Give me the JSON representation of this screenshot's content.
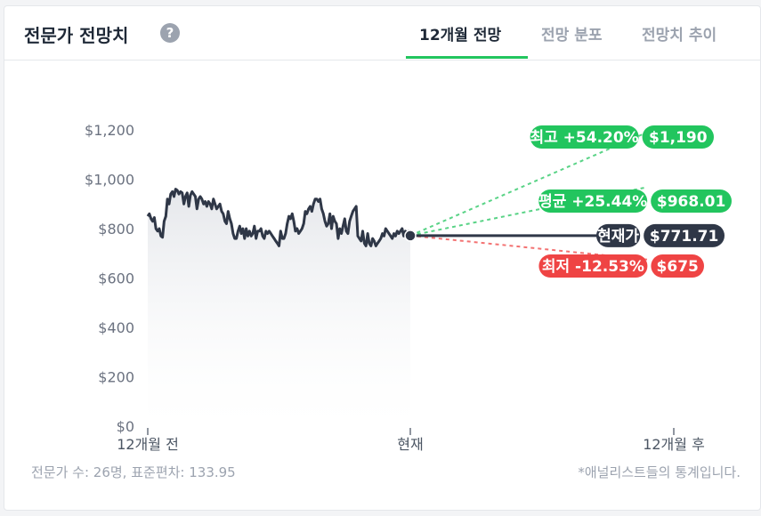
{
  "header": {
    "title": "전문가 전망치",
    "help_icon": "?",
    "tabs": [
      {
        "label": "12개월 전망",
        "active": true
      },
      {
        "label": "전망 분포",
        "active": false
      },
      {
        "label": "전망치 추이",
        "active": false
      }
    ]
  },
  "footer": {
    "stats": "전문가 수: 26명, 표준편차: 133.95",
    "note": "*애널리스트들의 통계입니다."
  },
  "colors": {
    "high": "#22c55e",
    "current": "#2f3747",
    "low": "#ef4444",
    "tab_accent": "#22c55e"
  },
  "chart_data": {
    "type": "line",
    "ylim": [
      0,
      1200
    ],
    "y_ticks": [
      "$0",
      "$200",
      "$400",
      "$600",
      "$800",
      "$1,000",
      "$1,200"
    ],
    "x_ticks": [
      "12개월 전",
      "현재",
      "12개월 후"
    ],
    "series": [
      {
        "values": [
          850,
          860,
          840,
          830,
          845,
          800,
          790,
          800,
          770,
          765,
          830,
          850,
          920,
          900,
          940,
          950,
          930,
          960,
          955,
          940,
          950,
          945,
          900,
          930,
          945,
          890,
          935,
          950,
          940,
          930,
          880,
          920,
          930,
          920,
          900,
          910,
          890,
          910,
          900,
          880,
          920,
          900,
          880,
          890,
          900,
          870,
          860,
          830,
          820,
          870,
          840,
          820,
          780,
          760,
          760,
          790,
          810,
          780,
          800,
          760,
          800,
          770,
          790,
          770,
          780,
          810,
          760,
          790,
          790,
          800,
          770,
          760,
          790,
          780,
          790,
          780,
          770,
          760,
          750,
          740,
          730,
          790,
          760,
          760,
          780,
          820,
          850,
          840,
          860,
          830,
          790,
          800,
          780,
          790,
          800,
          820,
          870,
          860,
          880,
          890,
          870,
          900,
          920,
          920,
          910,
          920,
          880,
          860,
          830,
          810,
          820,
          860,
          800,
          850,
          830,
          820,
          760,
          800,
          780,
          810,
          840,
          790,
          780,
          830,
          850,
          870,
          880,
          890,
          770,
          760,
          750,
          790,
          740,
          730,
          780,
          740,
          730,
          760,
          750,
          730,
          740,
          750,
          760,
          780,
          770,
          800,
          790,
          780,
          770,
          760,
          780,
          770,
          790,
          780,
          790,
          800,
          770,
          790,
          780,
          790,
          771.71
        ]
      }
    ],
    "current": {
      "label": "현재가",
      "value": "$771.71"
    },
    "targets": [
      {
        "label": "최고 +54.20%",
        "value": "$1,190",
        "price": 1190
      },
      {
        "label": "평균 +25.44%",
        "value": "$968.01",
        "price": 968.01
      },
      {
        "label": "최저 -12.53%",
        "value": "$675",
        "price": 675
      }
    ]
  }
}
